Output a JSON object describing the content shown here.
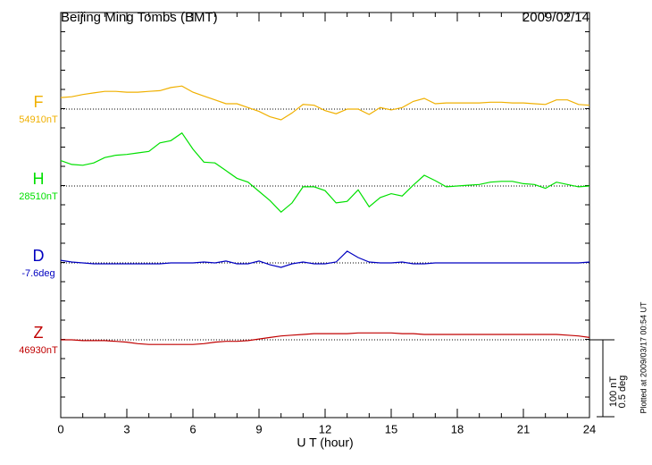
{
  "chart_data": {
    "type": "line",
    "title": "Beijing Ming Tombs (BMT)",
    "date": "2009/02/14",
    "xlabel": "U T (hour)",
    "note": "Plotted at 2009/03/17 00:54 UT",
    "xlim": [
      0,
      24
    ],
    "xticks": [
      0,
      3,
      6,
      9,
      12,
      15,
      18,
      21,
      24
    ],
    "scale_bar": [
      {
        "value": 100,
        "label": "100 nT"
      },
      {
        "value": 0.5,
        "label": "0.5 deg"
      }
    ],
    "x": [
      0,
      0.5,
      1,
      1.5,
      2,
      2.5,
      3,
      3.5,
      4,
      4.5,
      5,
      5.5,
      6,
      6.5,
      7,
      7.5,
      8,
      8.5,
      9,
      9.5,
      10,
      10.5,
      11,
      11.5,
      12,
      12.5,
      13,
      13.5,
      14,
      14.5,
      15,
      15.5,
      16,
      16.5,
      17,
      17.5,
      18,
      18.5,
      19,
      19.5,
      20,
      20.5,
      21,
      21.5,
      22,
      22.5,
      23,
      23.5,
      24
    ],
    "series": [
      {
        "name": "F",
        "baseline_label": "54910nT",
        "color": "#f0b000",
        "values": [
          15,
          16,
          19,
          21,
          23,
          23,
          22,
          22,
          23,
          24,
          28,
          30,
          22,
          17,
          12,
          7,
          7,
          2,
          -3,
          -10,
          -14,
          -5,
          6,
          5,
          -2,
          -6,
          0,
          0,
          -7,
          2,
          -1,
          2,
          10,
          14,
          7,
          8,
          8,
          8,
          8,
          9,
          9,
          8,
          8,
          7,
          6,
          12,
          12,
          6,
          5
        ]
      },
      {
        "name": "H",
        "baseline_label": "28510nT",
        "color": "#00e000",
        "values": [
          33,
          28,
          27,
          30,
          37,
          40,
          41,
          43,
          45,
          56,
          59,
          69,
          48,
          31,
          30,
          20,
          10,
          5,
          -7,
          -19,
          -34,
          -22,
          -1,
          -1,
          -6,
          -22,
          -20,
          -5,
          -27,
          -15,
          -10,
          -13,
          1,
          14,
          7,
          -1,
          0,
          1,
          2,
          5,
          6,
          6,
          3,
          2,
          -3,
          5,
          2,
          -1,
          0
        ]
      },
      {
        "name": "D",
        "baseline_label": "-7.6deg",
        "color": "#0000c0",
        "values": [
          0.017,
          0.006,
          0,
          -0.006,
          -0.006,
          -0.006,
          -0.006,
          -0.006,
          -0.006,
          -0.006,
          0,
          0,
          0,
          0.006,
          0,
          0.012,
          -0.006,
          -0.006,
          0.012,
          -0.012,
          -0.029,
          -0.006,
          0.006,
          -0.006,
          -0.006,
          0.006,
          0.076,
          0.035,
          0.006,
          0,
          0,
          0.006,
          -0.006,
          -0.006,
          0,
          0,
          0,
          0,
          0,
          0,
          0,
          0,
          0,
          0,
          0,
          0,
          0,
          0,
          0.006
        ]
      },
      {
        "name": "Z",
        "baseline_label": "46930nT",
        "color": "#c00000",
        "values": [
          0,
          0,
          -1,
          -1,
          -1,
          -2,
          -3,
          -5,
          -6,
          -6,
          -6,
          -6,
          -6,
          -5,
          -3,
          -2,
          -2,
          -1,
          1,
          3,
          5,
          6,
          7,
          8,
          8,
          8,
          8,
          9,
          9,
          9,
          9,
          8,
          8,
          7,
          7,
          7,
          7,
          7,
          7,
          7,
          7,
          7,
          7,
          7,
          7,
          7,
          6,
          5,
          3
        ]
      }
    ]
  }
}
